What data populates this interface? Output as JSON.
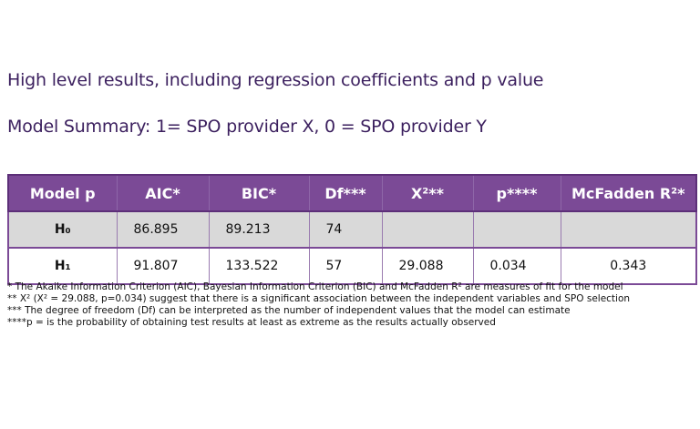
{
  "headings": {
    "title": "High level results, including regression coefficients and p value",
    "subtitle": "Model Summary: 1= SPO provider X, 0 = SPO provider Y"
  },
  "table": {
    "columns": [
      "Model p",
      "AIC*",
      "BIC*",
      "Df***",
      "X²**",
      "p****",
      "McFadden R²*"
    ],
    "rows": [
      {
        "model": "H₀",
        "aic": "86.895",
        "bic": "89.213",
        "df": "74",
        "chi2": "",
        "p": "",
        "mcfadden": ""
      },
      {
        "model": "H₁",
        "aic": "91.807",
        "bic": "133.522",
        "df": "57",
        "chi2": "29.088",
        "p": "0.034",
        "mcfadden": "0.343"
      }
    ]
  },
  "notes": [
    "* The Akaike Information Criterion (AIC), Bayesian Information Criterion (BIC) and McFadden R² are measures of fit for the model",
    "** X² (X² = 29.088, p=0.034) suggest that there is a significant association between the independent variables and SPO selection",
    "*** The degree of freedom (Df) can be interpreted as the number of independent values that the model can estimate",
    "****p = is the probability of obtaining test results at least as extreme as the results actually observed"
  ],
  "colors": {
    "header_bg": "#7b4a96",
    "heading_text": "#3b1f5e",
    "row_h0_bg": "#d9d9d9"
  }
}
